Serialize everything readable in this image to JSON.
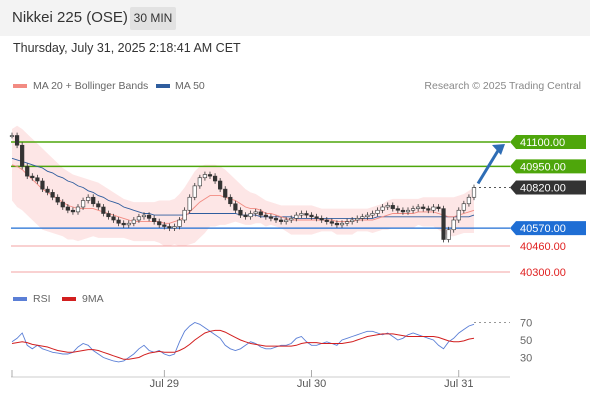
{
  "header": {
    "title": "Nikkei 225 (OSE)",
    "interval": "30 MIN"
  },
  "timestamp": "Thursday, July 31, 2025 2:18:41 AM CET",
  "legend": {
    "ma20": {
      "label": "MA 20 + Bollinger Bands",
      "color": "#f28b82"
    },
    "ma50": {
      "label": "MA 50",
      "color": "#2f5d9e"
    }
  },
  "credit": "Research © 2025 Trading Central",
  "rsi_legend": {
    "rsi": {
      "label": "RSI",
      "color": "#5b7fd6"
    },
    "ma9": {
      "label": "9MA",
      "color": "#d21f1f"
    }
  },
  "chart_data": [
    {
      "type": "line",
      "name": "price",
      "ylim": [
        40220,
        41420
      ],
      "y_axis_labels": [
        {
          "value": 41100,
          "text": "41100.00",
          "color": "#4ea60b"
        },
        {
          "value": 40950,
          "text": "40950.00",
          "color": "#4ea60b"
        },
        {
          "value": 40820,
          "text": "40820.00",
          "color": "#333333"
        },
        {
          "value": 40570,
          "text": "40570.00",
          "color": "#1f6ed4"
        },
        {
          "value": 40460,
          "text": "40460.00",
          "color": "#e02020"
        },
        {
          "value": 40300,
          "text": "40300.00",
          "color": "#e02020"
        }
      ],
      "resistance_levels": [
        41100,
        40950
      ],
      "pivot_level": 40570,
      "support_levels": [
        40460,
        40300
      ],
      "last_price": 40820,
      "target_arrow": {
        "from": 40820,
        "to": 41100
      },
      "close_series": [
        41140,
        41080,
        40950,
        40890,
        40880,
        40860,
        40810,
        40790,
        40760,
        40730,
        40700,
        40680,
        40670,
        40700,
        40740,
        40760,
        40720,
        40700,
        40660,
        40640,
        40620,
        40600,
        40590,
        40600,
        40620,
        40640,
        40650,
        40630,
        40610,
        40590,
        40580,
        40570,
        40580,
        40620,
        40680,
        40760,
        40830,
        40880,
        40900,
        40890,
        40860,
        40810,
        40760,
        40720,
        40680,
        40650,
        40640,
        40660,
        40670,
        40650,
        40640,
        40630,
        40620,
        40610,
        40620,
        40630,
        40650,
        40660,
        40650,
        40640,
        40630,
        40620,
        40610,
        40600,
        40590,
        40600,
        40610,
        40620,
        40630,
        40640,
        40650,
        40660,
        40680,
        40700,
        40710,
        40690,
        40680,
        40670,
        40680,
        40690,
        40700,
        40690,
        40680,
        40700,
        40690,
        40500,
        40560,
        40620,
        40680,
        40720,
        40760,
        40820
      ],
      "ma20_series": [
        40960,
        40950,
        40930,
        40900,
        40870,
        40840,
        40810,
        40790,
        40770,
        40750,
        40730,
        40710,
        40700,
        40690,
        40690,
        40690,
        40690,
        40680,
        40670,
        40660,
        40650,
        40640,
        40630,
        40620,
        40610,
        40610,
        40610,
        40610,
        40610,
        40610,
        40600,
        40600,
        40610,
        40620,
        40640,
        40670,
        40700,
        40730,
        40750,
        40770,
        40770,
        40770,
        40760,
        40750,
        40740,
        40720,
        40700,
        40690,
        40690,
        40680,
        40660,
        40660,
        40650,
        40640,
        40630,
        40620,
        40620,
        40620,
        40620,
        40620,
        40620,
        40620,
        40620,
        40620,
        40610,
        40610,
        40610,
        40610,
        40620,
        40620,
        40620,
        40620,
        40630,
        40640,
        40650,
        40660,
        40660,
        40660,
        40660,
        40660,
        40670,
        40670,
        40670,
        40670,
        40660,
        40650,
        40640,
        40640,
        40650,
        40660,
        40670,
        40680
      ],
      "ma50_series": [
        41000,
        40990,
        40980,
        40970,
        40960,
        40950,
        40940,
        40920,
        40910,
        40890,
        40880,
        40860,
        40850,
        40830,
        40820,
        40800,
        40790,
        40770,
        40760,
        40740,
        40730,
        40720,
        40700,
        40690,
        40680,
        40670,
        40660,
        40660,
        40650,
        40650,
        40650,
        40650,
        40650,
        40650,
        40650,
        40660,
        40660,
        40660,
        40660,
        40660,
        40660,
        40660,
        40660,
        40660,
        40660,
        40650,
        40650,
        40650,
        40650,
        40640,
        40640,
        40640,
        40640,
        40640,
        40640,
        40640,
        40630,
        40630,
        40630,
        40630,
        40630,
        40630,
        40630,
        40630,
        40630,
        40630,
        40630,
        40630,
        40630,
        40630,
        40630,
        40630,
        40640,
        40640,
        40640,
        40640,
        40640,
        40640,
        40640,
        40640,
        40640,
        40640,
        40640,
        40640,
        40640,
        40640,
        40640,
        40640,
        40640,
        40640,
        40640,
        40650
      ],
      "bb_upper_series": [
        41180,
        41200,
        41180,
        41150,
        41120,
        41090,
        41060,
        41030,
        41000,
        40970,
        40940,
        40920,
        40900,
        40890,
        40880,
        40870,
        40860,
        40850,
        40830,
        40810,
        40790,
        40770,
        40750,
        40740,
        40730,
        40730,
        40730,
        40730,
        40730,
        40740,
        40740,
        40740,
        40750,
        40780,
        40820,
        40870,
        40920,
        40950,
        40960,
        40960,
        40960,
        40950,
        40930,
        40900,
        40870,
        40840,
        40810,
        40790,
        40780,
        40760,
        40740,
        40730,
        40720,
        40710,
        40710,
        40710,
        40710,
        40710,
        40710,
        40710,
        40700,
        40690,
        40690,
        40690,
        40690,
        40690,
        40690,
        40690,
        40690,
        40690,
        40690,
        40700,
        40710,
        40720,
        40740,
        40750,
        40750,
        40750,
        40750,
        40750,
        40750,
        40760,
        40760,
        40760,
        40760,
        40760,
        40760,
        40760,
        40770,
        40780,
        40800,
        40820
      ],
      "bb_lower_series": [
        40740,
        40700,
        40680,
        40650,
        40620,
        40590,
        40560,
        40550,
        40540,
        40530,
        40520,
        40500,
        40500,
        40490,
        40500,
        40510,
        40520,
        40510,
        40510,
        40510,
        40510,
        40510,
        40510,
        40500,
        40490,
        40490,
        40490,
        40490,
        40490,
        40480,
        40460,
        40460,
        40470,
        40460,
        40460,
        40470,
        40480,
        40510,
        40540,
        40580,
        40580,
        40590,
        40590,
        40600,
        40610,
        40600,
        40590,
        40590,
        40600,
        40600,
        40580,
        40590,
        40580,
        40570,
        40550,
        40530,
        40530,
        40530,
        40530,
        40530,
        40540,
        40550,
        40550,
        40550,
        40530,
        40530,
        40530,
        40530,
        40550,
        40550,
        40550,
        40540,
        40550,
        40560,
        40560,
        40570,
        40570,
        40570,
        40570,
        40570,
        40590,
        40580,
        40580,
        40580,
        40560,
        40540,
        40520,
        40520,
        40530,
        40540,
        40540,
        40540
      ]
    },
    {
      "type": "line",
      "name": "RSI",
      "ylim": [
        10,
        90
      ],
      "y_ticks": [
        70,
        50,
        30
      ],
      "rsi_series": [
        48,
        52,
        58,
        44,
        40,
        44,
        40,
        38,
        36,
        35,
        34,
        34,
        36,
        42,
        46,
        44,
        38,
        34,
        30,
        28,
        26,
        25,
        26,
        30,
        34,
        40,
        44,
        38,
        36,
        38,
        34,
        32,
        34,
        48,
        60,
        66,
        70,
        68,
        64,
        60,
        56,
        52,
        44,
        40,
        38,
        40,
        44,
        48,
        46,
        42,
        40,
        40,
        42,
        44,
        44,
        46,
        52,
        54,
        48,
        44,
        44,
        46,
        48,
        46,
        44,
        50,
        52,
        54,
        56,
        58,
        60,
        60,
        58,
        56,
        58,
        54,
        50,
        52,
        56,
        58,
        56,
        54,
        52,
        50,
        44,
        40,
        48,
        52,
        58,
        62,
        66,
        68
      ],
      "ma9_series": [
        46,
        47,
        48,
        47,
        45,
        44,
        43,
        42,
        40,
        38,
        37,
        36,
        36,
        37,
        38,
        39,
        39,
        38,
        36,
        34,
        32,
        30,
        28,
        28,
        29,
        30,
        33,
        35,
        36,
        37,
        36,
        36,
        36,
        38,
        41,
        45,
        50,
        54,
        58,
        60,
        61,
        61,
        59,
        56,
        53,
        50,
        48,
        46,
        45,
        44,
        43,
        43,
        43,
        43,
        43,
        43,
        44,
        46,
        47,
        47,
        47,
        46,
        46,
        46,
        46,
        46,
        47,
        48,
        50,
        52,
        54,
        55,
        56,
        57,
        57,
        57,
        56,
        55,
        54,
        54,
        54,
        54,
        54,
        54,
        53,
        51,
        49,
        48,
        48,
        49,
        51,
        52
      ]
    }
  ],
  "x_axis_labels": [
    {
      "index": 30,
      "text": "Jul 29"
    },
    {
      "index": 59,
      "text": "Jul 30"
    },
    {
      "index": 88,
      "text": "Jul 31"
    }
  ]
}
